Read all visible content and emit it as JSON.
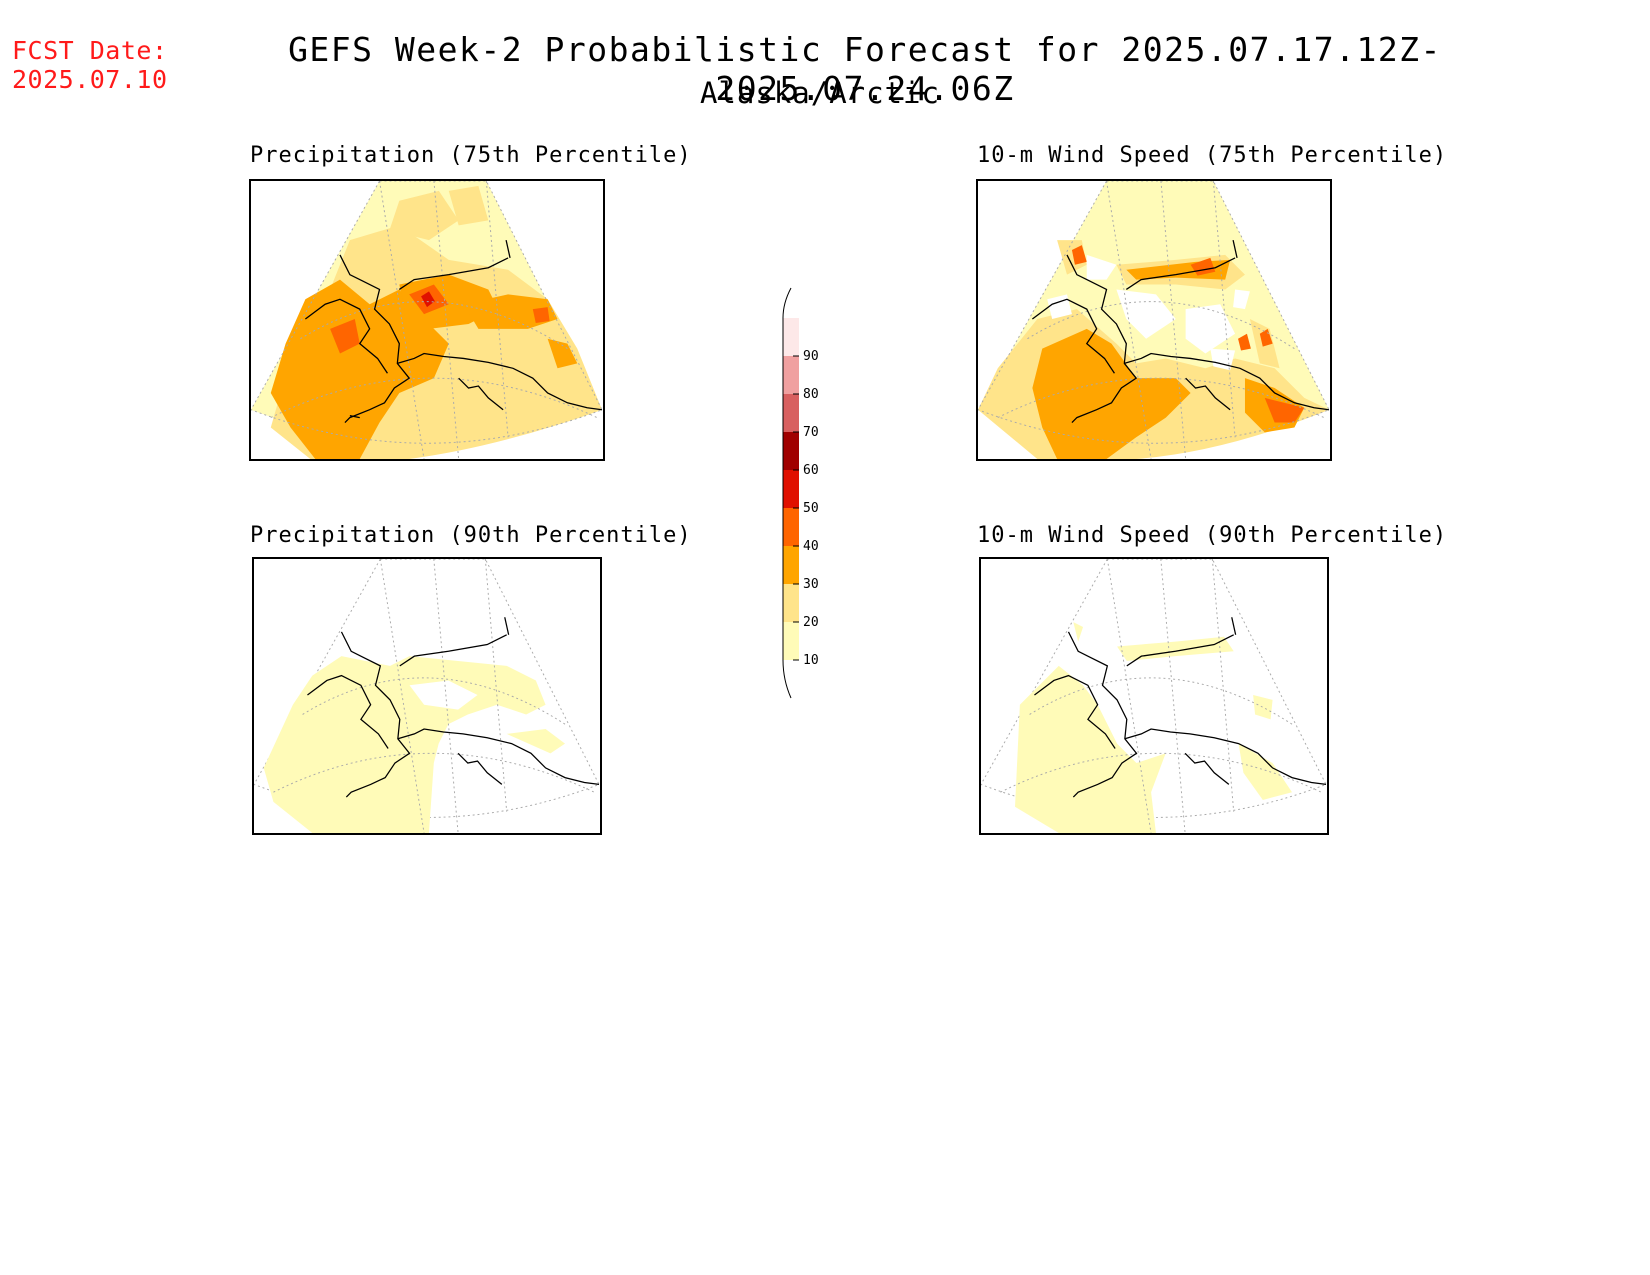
{
  "header": {
    "fcst_label": "FCST Date:",
    "fcst_date": "2025.07.10",
    "title": "GEFS Week-2 Probabilistic Forecast for 2025.07.17.12Z-2025.07.24.06Z",
    "region": "Alaska/Arctic"
  },
  "panels": [
    {
      "id": "precip-75",
      "title": "Precipitation (75th Percentile)"
    },
    {
      "id": "wind-75",
      "title": "10-m Wind Speed (75th Percentile)"
    },
    {
      "id": "precip-90",
      "title": "Precipitation (90th Percentile)"
    },
    {
      "id": "wind-90",
      "title": "10-m Wind Speed (90th Percentile)"
    }
  ],
  "legend": {
    "levels": [
      "10",
      "20",
      "30",
      "40",
      "50",
      "60",
      "70",
      "80",
      "90"
    ],
    "colors": [
      "#fffbb8",
      "#ffe48a",
      "#ffa500",
      "#ff6500",
      "#e01000",
      "#a00000",
      "#d86060",
      "#f0a0a0",
      "#fde8e8"
    ]
  }
}
